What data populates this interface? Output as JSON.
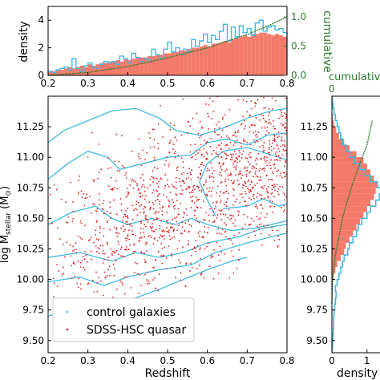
{
  "colors": {
    "control": "#3fb8e0",
    "quasar": "#f47a6a",
    "quasar_points": "#e02020",
    "cumulative": "#2e7d2e",
    "axis": "#000000"
  },
  "chart_data": [
    {
      "id": "top-hist",
      "type": "bar",
      "x_ticks": [
        "0.2",
        "0.3",
        "0.4",
        "0.5",
        "0.6",
        "0.7",
        "0.8"
      ],
      "y_ticks": [
        "0",
        "2",
        "4"
      ],
      "y2_ticks": [
        "0.0",
        "0.5",
        "1.0"
      ],
      "ylabel": "density",
      "y2label": "cumulative",
      "xlim": [
        0.2,
        0.8
      ],
      "ylim": [
        0,
        5
      ],
      "y2lim": [
        0,
        1.18
      ],
      "bin_edges_start": 0.2,
      "bin_width": 0.01,
      "quasar_density": [
        0.25,
        0.3,
        0.35,
        0.4,
        0.5,
        0.6,
        0.5,
        0.6,
        0.7,
        0.6,
        0.8,
        0.7,
        0.8,
        0.9,
        0.9,
        1.0,
        1.0,
        1.1,
        1.0,
        1.2,
        1.1,
        1.2,
        1.3,
        1.3,
        1.3,
        1.4,
        1.4,
        1.5,
        1.5,
        1.6,
        1.6,
        1.7,
        1.7,
        1.8,
        1.8,
        1.9,
        2.0,
        2.0,
        2.1,
        2.2,
        2.1,
        2.3,
        2.3,
        2.4,
        2.5,
        2.4,
        2.6,
        2.7,
        2.8,
        2.9,
        2.8,
        3.0,
        3.0,
        3.1,
        3.1,
        3.0,
        2.9,
        3.0,
        2.9,
        2.8
      ],
      "control_density": [
        0.3,
        0.2,
        0.4,
        0.5,
        0.6,
        0.4,
        1.2,
        0.5,
        0.3,
        0.7,
        0.9,
        0.6,
        0.5,
        0.8,
        1.0,
        0.9,
        1.0,
        0.8,
        1.4,
        1.2,
        0.9,
        1.6,
        1.3,
        1.0,
        1.2,
        1.1,
        1.9,
        1.5,
        1.2,
        1.9,
        2.4,
        1.7,
        2.0,
        1.5,
        1.9,
        1.7,
        2.6,
        2.1,
        2.5,
        3.0,
        2.4,
        2.9,
        2.6,
        3.2,
        3.7,
        2.5,
        3.5,
        2.8,
        3.6,
        3.1,
        3.4,
        2.9,
        3.8,
        4.0,
        3.2,
        3.5,
        3.6,
        3.3,
        3.4,
        3.1
      ],
      "cumulative": [
        [
          0.2,
          0.0
        ],
        [
          0.3,
          0.05
        ],
        [
          0.4,
          0.15
        ],
        [
          0.5,
          0.3
        ],
        [
          0.6,
          0.47
        ],
        [
          0.7,
          0.7
        ],
        [
          0.75,
          0.84
        ],
        [
          0.8,
          1.0
        ]
      ]
    },
    {
      "id": "main-scatter",
      "type": "scatter",
      "x_ticks": [
        "0.2",
        "0.3",
        "0.4",
        "0.5",
        "0.6",
        "0.7",
        "0.8"
      ],
      "y_ticks": [
        "9.50",
        "9.75",
        "10.00",
        "10.25",
        "10.50",
        "10.75",
        "11.00",
        "11.25"
      ],
      "xlabel": "Redshift",
      "ylabel": "log M",
      "ylabel_sub": "stellar",
      "ylabel_unit": " (M",
      "ylabel_unit_sub": "⊙",
      "ylabel_unit_close": ")",
      "xlim": [
        0.2,
        0.8
      ],
      "ylim": [
        9.4,
        11.5
      ],
      "legend": [
        "control galaxies",
        "SDSS-HSC quasar"
      ],
      "legend_position": "lower-left",
      "quasar_n": 1400,
      "contours": [
        [
          [
            0.2,
            11.12
          ],
          [
            0.24,
            11.22
          ],
          [
            0.3,
            11.3
          ],
          [
            0.36,
            11.38
          ],
          [
            0.42,
            11.4
          ],
          [
            0.48,
            11.32
          ],
          [
            0.52,
            11.22
          ],
          [
            0.58,
            11.18
          ],
          [
            0.64,
            11.24
          ],
          [
            0.7,
            11.32
          ],
          [
            0.76,
            11.38
          ],
          [
            0.8,
            11.4
          ]
        ],
        [
          [
            0.2,
            10.82
          ],
          [
            0.25,
            10.95
          ],
          [
            0.3,
            11.05
          ],
          [
            0.35,
            11.0
          ],
          [
            0.38,
            10.9
          ],
          [
            0.44,
            10.95
          ],
          [
            0.5,
            11.0
          ],
          [
            0.56,
            11.02
          ],
          [
            0.6,
            11.12
          ],
          [
            0.65,
            11.15
          ],
          [
            0.7,
            11.1
          ],
          [
            0.75,
            11.18
          ],
          [
            0.8,
            11.2
          ]
        ],
        [
          [
            0.62,
            10.52
          ],
          [
            0.6,
            10.65
          ],
          [
            0.58,
            10.8
          ],
          [
            0.6,
            10.95
          ],
          [
            0.64,
            11.05
          ],
          [
            0.7,
            11.08
          ],
          [
            0.76,
            11.02
          ],
          [
            0.8,
            10.98
          ]
        ],
        [
          [
            0.64,
            10.58
          ],
          [
            0.7,
            10.6
          ],
          [
            0.74,
            10.66
          ],
          [
            0.78,
            10.6
          ],
          [
            0.8,
            10.62
          ]
        ],
        [
          [
            0.2,
            10.45
          ],
          [
            0.26,
            10.55
          ],
          [
            0.32,
            10.6
          ],
          [
            0.36,
            10.5
          ],
          [
            0.4,
            10.45
          ],
          [
            0.46,
            10.5
          ],
          [
            0.52,
            10.45
          ],
          [
            0.56,
            10.5
          ],
          [
            0.6,
            10.45
          ],
          [
            0.66,
            10.4
          ],
          [
            0.72,
            10.42
          ],
          [
            0.8,
            10.48
          ]
        ],
        [
          [
            0.2,
            10.18
          ],
          [
            0.28,
            10.22
          ],
          [
            0.36,
            10.15
          ],
          [
            0.42,
            10.22
          ],
          [
            0.48,
            10.18
          ],
          [
            0.54,
            10.22
          ],
          [
            0.6,
            10.3
          ],
          [
            0.68,
            10.35
          ],
          [
            0.74,
            10.42
          ],
          [
            0.8,
            10.45
          ]
        ],
        [
          [
            0.2,
            9.98
          ],
          [
            0.28,
            10.02
          ],
          [
            0.34,
            9.95
          ],
          [
            0.4,
            10.02
          ],
          [
            0.48,
            10.08
          ],
          [
            0.56,
            10.12
          ],
          [
            0.62,
            10.22
          ],
          [
            0.7,
            10.3
          ],
          [
            0.8,
            10.38
          ]
        ],
        [
          [
            0.2,
            9.7
          ],
          [
            0.26,
            9.75
          ],
          [
            0.3,
            9.82
          ],
          [
            0.36,
            9.78
          ],
          [
            0.42,
            9.85
          ],
          [
            0.48,
            9.92
          ],
          [
            0.54,
            10.0
          ],
          [
            0.6,
            10.08
          ],
          [
            0.66,
            10.15
          ],
          [
            0.7,
            10.18
          ]
        ]
      ]
    },
    {
      "id": "right-hist",
      "type": "bar",
      "x_ticks": [
        "0",
        "1"
      ],
      "xlabel": "density",
      "x2_ticks": [
        "0"
      ],
      "x2label": "cumulative",
      "xlim": [
        0,
        1.6
      ],
      "ylim": [
        9.4,
        11.5
      ],
      "bin_edges_start": 9.4,
      "bin_width": 0.05,
      "quasar_density": [
        0,
        0,
        0,
        0,
        0,
        0,
        0,
        0,
        0,
        0,
        0,
        0.02,
        0.05,
        0.1,
        0.15,
        0.25,
        0.35,
        0.4,
        0.5,
        0.6,
        0.7,
        0.8,
        0.9,
        1.0,
        1.1,
        1.2,
        1.25,
        1.3,
        1.2,
        1.1,
        1.0,
        0.9,
        0.7,
        0.5,
        0.35,
        0.2,
        0.12,
        0.06,
        0.03,
        0.01,
        0,
        0
      ],
      "control_density": [
        0.01,
        0.02,
        0.03,
        0.04,
        0.05,
        0.05,
        0.06,
        0.08,
        0.1,
        0.12,
        0.1,
        0.15,
        0.2,
        0.25,
        0.3,
        0.35,
        0.45,
        0.5,
        0.6,
        0.7,
        0.75,
        0.85,
        1.0,
        1.1,
        1.25,
        1.35,
        1.45,
        1.3,
        1.1,
        0.95,
        0.8,
        0.65,
        0.5,
        0.4,
        0.3,
        0.25,
        0.2,
        0.15,
        0.1,
        0.06,
        0.03,
        0.01
      ],
      "cumulative": [
        [
          0.0,
          9.8
        ],
        [
          0.02,
          10.0
        ],
        [
          0.1,
          10.2
        ],
        [
          0.3,
          10.5
        ],
        [
          0.55,
          10.75
        ],
        [
          0.8,
          10.95
        ],
        [
          1.0,
          11.1
        ],
        [
          1.15,
          11.3
        ]
      ]
    }
  ]
}
